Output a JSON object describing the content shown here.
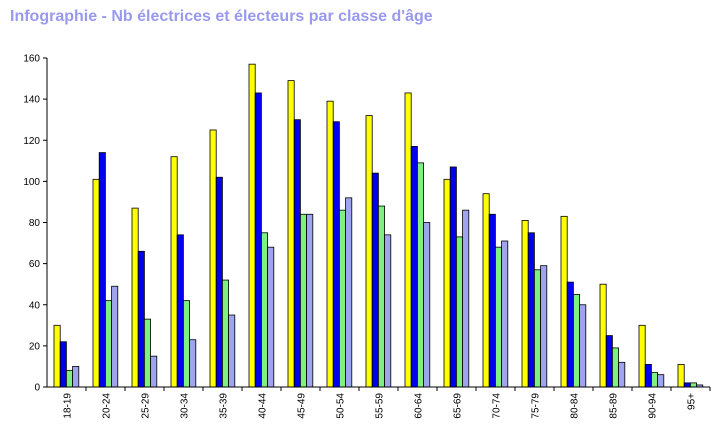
{
  "title": "Infographie - Nb électrices et électeurs par classe d'âge",
  "colors": {
    "title": "#9999ee",
    "series": [
      "#ffff00",
      "#0000ee",
      "#80f080",
      "#9fa4ee"
    ],
    "axis": "#000000"
  },
  "chart_data": {
    "type": "bar",
    "categories": [
      "18-19",
      "20-24",
      "25-29",
      "30-34",
      "35-39",
      "40-44",
      "45-49",
      "50-54",
      "55-59",
      "60-64",
      "65-69",
      "70-74",
      "75-79",
      "80-84",
      "85-89",
      "90-94",
      "95+"
    ],
    "series": [
      {
        "values": [
          30,
          101,
          87,
          112,
          125,
          157,
          149,
          139,
          132,
          143,
          101,
          94,
          81,
          83,
          50,
          30,
          11
        ]
      },
      {
        "values": [
          22,
          114,
          66,
          74,
          102,
          143,
          130,
          129,
          104,
          117,
          107,
          84,
          75,
          51,
          25,
          11,
          2
        ]
      },
      {
        "values": [
          8,
          42,
          33,
          42,
          52,
          75,
          84,
          86,
          88,
          109,
          73,
          68,
          57,
          45,
          19,
          7,
          2
        ]
      },
      {
        "values": [
          10,
          49,
          15,
          23,
          35,
          68,
          84,
          92,
          74,
          80,
          86,
          71,
          59,
          40,
          12,
          6,
          1
        ]
      }
    ],
    "yticks": [
      0,
      20,
      40,
      60,
      80,
      100,
      120,
      140,
      160
    ],
    "ylim": [
      0,
      160
    ],
    "grid": false,
    "legend": "none"
  }
}
